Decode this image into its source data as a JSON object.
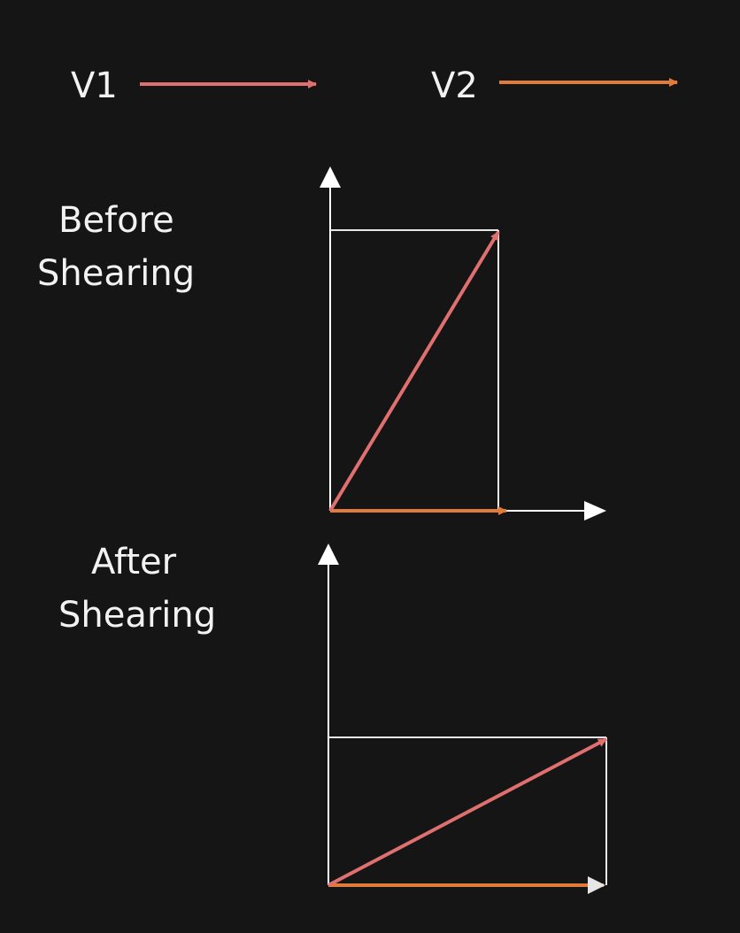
{
  "legend": {
    "v1_label": "V1",
    "v2_label": "V2"
  },
  "sections": {
    "before": {
      "line1": "Before",
      "line2": "Shearing"
    },
    "after": {
      "line1": "After",
      "line2": "Shearing"
    }
  },
  "colors": {
    "background": "#151515",
    "text": "#f2f2f2",
    "v1": "#e06f6f",
    "v2": "#e07b39",
    "axis": "#ffffff",
    "box": "#e6e6e6"
  }
}
